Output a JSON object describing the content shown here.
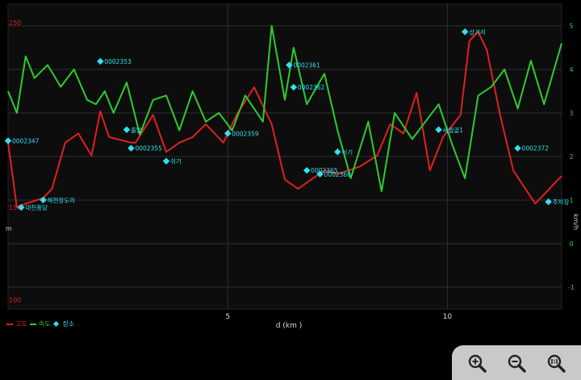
{
  "chart_data": {
    "type": "line",
    "xlabel": "d (km )",
    "x_ticks": [
      "5",
      "10"
    ],
    "x_range": [
      0,
      12.6
    ],
    "left_axis": {
      "label": "m",
      "ticks": [
        "250",
        "150",
        "100"
      ],
      "tick_values": [
        250,
        150,
        100
      ],
      "range": [
        95,
        260
      ],
      "color": "#e02020"
    },
    "right_axis": {
      "label": "km/h",
      "ticks": [
        "5",
        "4",
        "3",
        "2",
        "1",
        "0",
        "-1"
      ],
      "tick_values": [
        5,
        4,
        3,
        2,
        1,
        0,
        -1
      ],
      "range": [
        -1.5,
        5.5
      ],
      "color": "#2ecc2e"
    },
    "series": [
      {
        "name": "고도",
        "axis": "left",
        "color": "#e02020",
        "x": [
          0,
          0.2,
          0.4,
          0.8,
          1.0,
          1.3,
          1.6,
          1.9,
          2.1,
          2.3,
          2.8,
          2.9,
          3.3,
          3.6,
          3.9,
          4.2,
          4.5,
          4.9,
          5.2,
          5.6,
          6.0,
          6.3,
          6.6,
          6.9,
          7.2,
          7.5,
          8.0,
          8.4,
          8.7,
          9.0,
          9.3,
          9.6,
          9.9,
          10.3,
          10.5,
          10.7,
          10.9,
          11.2,
          11.5,
          12.0,
          12.6
        ],
        "values": [
          185,
          150,
          152,
          155,
          160,
          185,
          190,
          178,
          202,
          188,
          185,
          185,
          200,
          180,
          185,
          188,
          195,
          185,
          200,
          215,
          195,
          165,
          160,
          165,
          170,
          168,
          172,
          178,
          195,
          190,
          212,
          170,
          188,
          200,
          240,
          245,
          235,
          200,
          170,
          152,
          167
        ]
      },
      {
        "name": "속도",
        "axis": "right",
        "color": "#2ecc2e",
        "x": [
          0,
          0.2,
          0.4,
          0.6,
          0.9,
          1.2,
          1.5,
          1.8,
          2.0,
          2.2,
          2.4,
          2.7,
          3.0,
          3.3,
          3.6,
          3.9,
          4.2,
          4.5,
          4.8,
          5.1,
          5.4,
          5.8,
          6.0,
          6.3,
          6.5,
          6.8,
          7.2,
          7.5,
          7.8,
          8.2,
          8.5,
          8.8,
          9.2,
          9.5,
          9.8,
          10.1,
          10.4,
          10.7,
          11.0,
          11.3,
          11.6,
          11.9,
          12.2,
          12.6
        ],
        "values": [
          3.5,
          3.0,
          4.3,
          3.8,
          4.1,
          3.6,
          4.0,
          3.3,
          3.2,
          3.5,
          3.0,
          3.7,
          2.5,
          3.3,
          3.4,
          2.6,
          3.5,
          2.8,
          3.0,
          2.6,
          3.4,
          2.8,
          5.0,
          3.3,
          4.5,
          3.2,
          3.9,
          2.6,
          1.5,
          2.8,
          1.2,
          3.0,
          2.4,
          2.8,
          3.2,
          2.3,
          1.5,
          3.4,
          3.6,
          4.0,
          3.1,
          4.2,
          3.2,
          4.6
        ]
      }
    ],
    "markers": [
      {
        "x": 0.0,
        "y": 186,
        "label": "0002347"
      },
      {
        "x": 0.3,
        "y": 150,
        "label": "대천홍당"
      },
      {
        "x": 0.8,
        "y": 154,
        "label": "해천장도리"
      },
      {
        "x": 2.1,
        "y": 229,
        "label": "0002353"
      },
      {
        "x": 2.7,
        "y": 192,
        "label": "출발"
      },
      {
        "x": 2.8,
        "y": 182,
        "label": "0002355"
      },
      {
        "x": 3.6,
        "y": 175,
        "label": "쉬기"
      },
      {
        "x": 5.0,
        "y": 190,
        "label": "0002359"
      },
      {
        "x": 6.4,
        "y": 227,
        "label": "0002361"
      },
      {
        "x": 6.5,
        "y": 215,
        "label": "0002362"
      },
      {
        "x": 6.8,
        "y": 170,
        "label": "0002365"
      },
      {
        "x": 7.1,
        "y": 168,
        "label": "0002366"
      },
      {
        "x": 7.5,
        "y": 180,
        "label": "쉬기"
      },
      {
        "x": 10.4,
        "y": 245,
        "label": "삼거리"
      },
      {
        "x": 9.8,
        "y": 192,
        "label": "세월골1"
      },
      {
        "x": 11.6,
        "y": 182,
        "label": "0002372"
      },
      {
        "x": 12.3,
        "y": 153,
        "label": "주차장"
      }
    ]
  },
  "legend": {
    "altitude": "고도",
    "speed": "속도",
    "place": "장소"
  },
  "colors": {
    "background": "#0d0d0d",
    "grid": "#2e2e2e",
    "altitude": "#e02020",
    "speed": "#2ecc2e",
    "marker": "#33e0ee",
    "zoom_panel": "#c9c9c9"
  },
  "zoom_controls": {
    "zoom_in_icon": "zoom-in-icon",
    "zoom_out_icon": "zoom-out-icon",
    "reset_icon": "zoom-reset-icon"
  }
}
